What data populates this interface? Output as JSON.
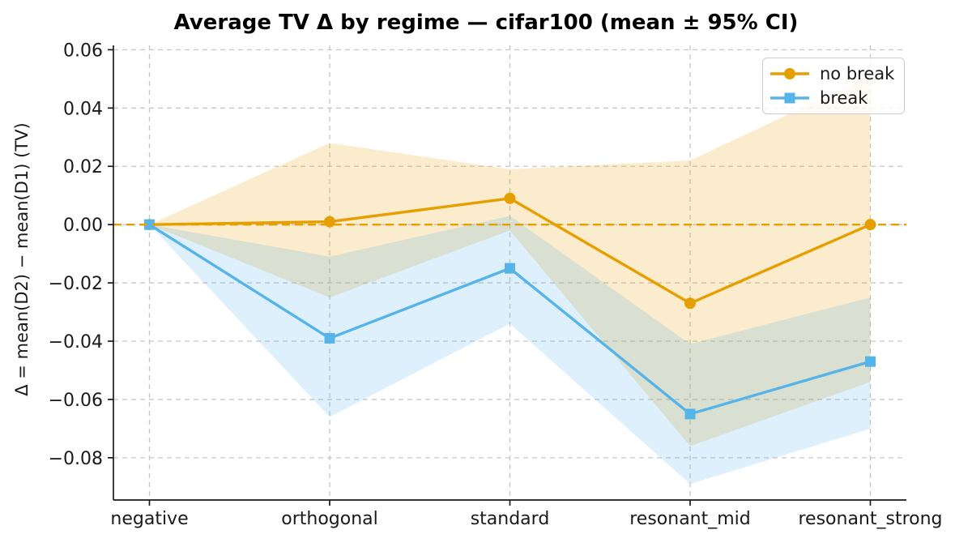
{
  "chart_data": {
    "type": "line",
    "title": "Average TV Δ by regime — cifar100 (mean ± 95% CI)",
    "xlabel": "",
    "ylabel": "Δ = mean(D2) − mean(D1) (TV)",
    "categories": [
      "negative",
      "orthogonal",
      "standard",
      "resonant_mid",
      "resonant_strong"
    ],
    "series": [
      {
        "name": "no break",
        "color": "#E69F00",
        "marker": "circle",
        "values": [
          0.0,
          0.001,
          0.009,
          -0.027,
          0.0
        ],
        "ci_high": [
          0.0,
          0.028,
          0.019,
          0.022,
          0.051
        ],
        "ci_low": [
          0.0,
          -0.025,
          -0.002,
          -0.076,
          -0.054
        ]
      },
      {
        "name": "break",
        "color": "#56B4E9",
        "marker": "square",
        "values": [
          0.0,
          -0.039,
          -0.015,
          -0.065,
          -0.047
        ],
        "ci_high": [
          0.0,
          -0.011,
          0.003,
          -0.041,
          -0.025
        ],
        "ci_low": [
          0.0,
          -0.066,
          -0.034,
          -0.089,
          -0.07
        ]
      }
    ],
    "band_alpha": 0.2,
    "yticks": [
      {
        "value": 0.06,
        "label": "0.06"
      },
      {
        "value": 0.04,
        "label": "0.04"
      },
      {
        "value": 0.02,
        "label": "0.02"
      },
      {
        "value": 0.0,
        "label": "0.00"
      },
      {
        "value": -0.02,
        "label": "−0.02"
      },
      {
        "value": -0.04,
        "label": "−0.04"
      },
      {
        "value": -0.06,
        "label": "−0.06"
      },
      {
        "value": -0.08,
        "label": "−0.08"
      }
    ],
    "ylim": [
      -0.0945,
      0.0615
    ],
    "zero_line": {
      "y": 0,
      "color": "#E69F00",
      "style": "dashed"
    },
    "grid": {
      "show": true,
      "color": "#c7c7c7",
      "style": "dashed"
    },
    "legend_position": "upper right",
    "colors": {
      "axis": "#1a1a1a",
      "text": "#1a1a1a",
      "background": "#ffffff"
    }
  }
}
